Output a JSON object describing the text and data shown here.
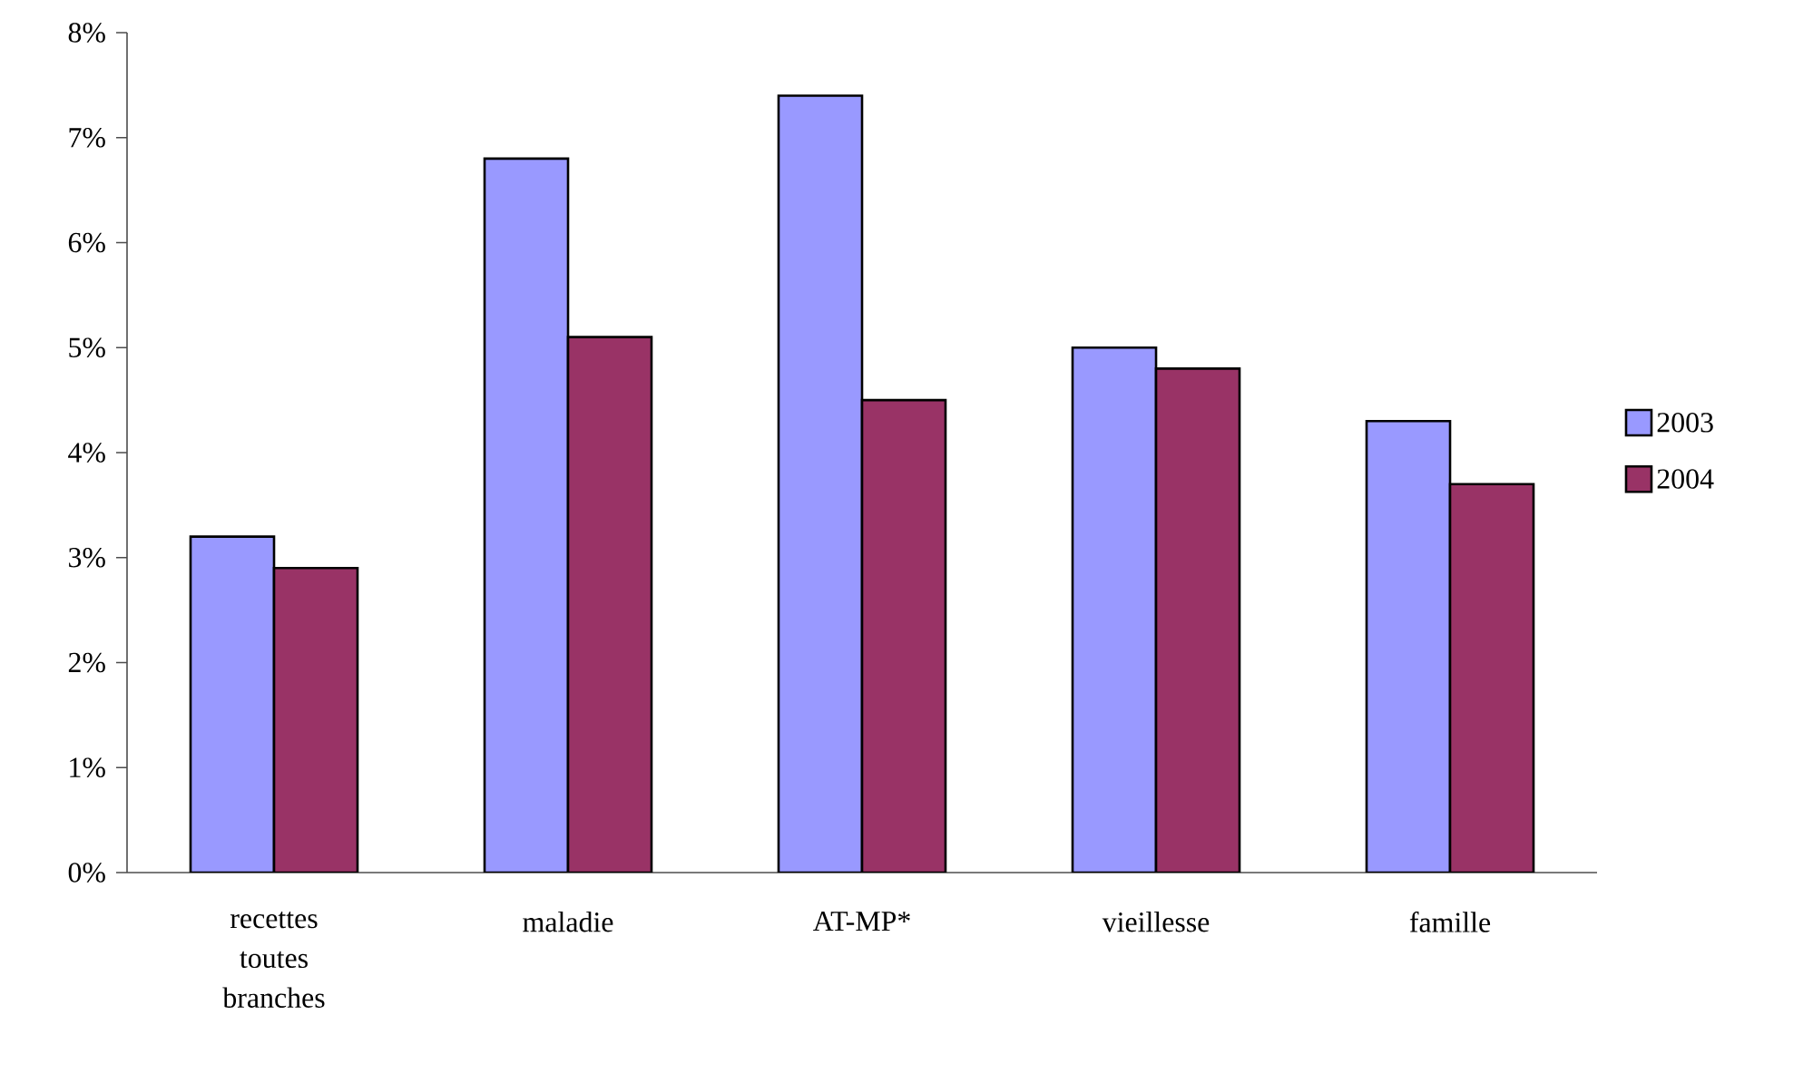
{
  "chart_data": {
    "type": "bar",
    "categories": [
      "recettes toutes branches",
      "maladie",
      "AT-MP*",
      "vieillesse",
      "famille"
    ],
    "series": [
      {
        "name": "2003",
        "color": "#9999ff",
        "values": [
          3.2,
          6.8,
          7.4,
          5.0,
          4.3
        ]
      },
      {
        "name": "2004",
        "color": "#993366",
        "values": [
          2.9,
          5.1,
          4.5,
          4.8,
          3.7
        ]
      }
    ],
    "ylim": [
      0,
      8
    ],
    "yticks": [
      {
        "value": 0,
        "label": "0%"
      },
      {
        "value": 1,
        "label": "1%"
      },
      {
        "value": 2,
        "label": "2%"
      },
      {
        "value": 3,
        "label": "3%"
      },
      {
        "value": 4,
        "label": "4%"
      },
      {
        "value": 5,
        "label": "5%"
      },
      {
        "value": 6,
        "label": "6%"
      },
      {
        "value": 7,
        "label": "7%"
      },
      {
        "value": 8,
        "label": "8%"
      }
    ],
    "grid": false,
    "legend": "right"
  }
}
